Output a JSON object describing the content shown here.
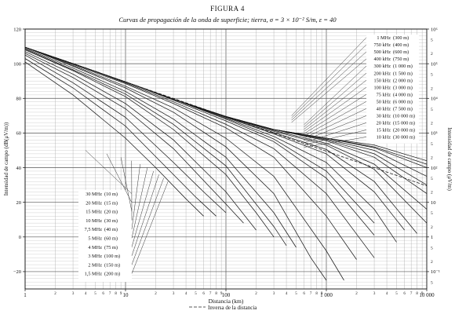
{
  "figure": {
    "number": "FIGURA 4",
    "title": "Curvas de propagación de la onda de superficie; tierra, σ = 3 × 10⁻² S/m, ε = 40",
    "legend_note": "Inversa de la distancia"
  },
  "chart_data": {
    "type": "line",
    "title": "Curvas de propagación de la onda de superficie; tierra, σ = 3 × 10⁻² S/m, ε = 40",
    "xlabel": "Distancia (km)",
    "ylabel": "Intensidad de campo (dB(μV/m))",
    "ylabel_right": "Intensidad de campo (μV/m)",
    "xscale": "log",
    "xlim": [
      1,
      10000
    ],
    "ylim": [
      -30,
      120
    ],
    "grid": true,
    "x_ticks": [
      1,
      10,
      100,
      1000,
      10000
    ],
    "x_tick_labels": [
      "1",
      "10",
      "100",
      "1 000",
      "10 000"
    ],
    "x_minor_labels": [
      "2",
      "3",
      "4",
      "5",
      "6",
      "7",
      "8",
      "9"
    ],
    "y_ticks": [
      -20,
      0,
      20,
      40,
      60,
      80,
      100,
      120
    ],
    "y_tick_labels": [
      "−20",
      "0",
      "20",
      "40",
      "60",
      "80",
      "100",
      "120"
    ],
    "right_axis_ticks": [
      {
        "db": 120,
        "label": "10⁶"
      },
      {
        "db": 100,
        "label": "10⁵"
      },
      {
        "db": 80,
        "label": "10⁴"
      },
      {
        "db": 60,
        "label": "10³"
      },
      {
        "db": 40,
        "label": "10²"
      },
      {
        "db": 20,
        "label": "10"
      },
      {
        "db": 0,
        "label": "1"
      },
      {
        "db": -20,
        "label": "10⁻¹"
      }
    ],
    "right_minor_labels": [
      "5",
      "2"
    ],
    "reference_line": {
      "name": "Inversa de la distancia",
      "x": [
        1,
        10000
      ],
      "y": [
        109.5,
        29.5
      ]
    },
    "series": [
      {
        "name": "1 MHz",
        "wavelength": "(300 m)",
        "x": [
          1,
          3,
          10,
          30,
          100,
          300,
          1000,
          2000
        ],
        "y": [
          109.5,
          99.5,
          88.5,
          77,
          63,
          46,
          12,
          -13
        ]
      },
      {
        "name": "750 kHz",
        "wavelength": "(400 m)",
        "x": [
          1,
          3,
          10,
          30,
          100,
          300,
          1000,
          3000
        ],
        "y": [
          109.5,
          100,
          89,
          78,
          65,
          51,
          25,
          -12
        ]
      },
      {
        "name": "500 kHz",
        "wavelength": "(600 m)",
        "x": [
          1,
          3,
          10,
          30,
          100,
          300,
          1000,
          3000
        ],
        "y": [
          109.5,
          100,
          89.5,
          79,
          67,
          55,
          34,
          1
        ]
      },
      {
        "name": "400 kHz",
        "wavelength": "(750 m)",
        "x": [
          1,
          3,
          10,
          30,
          100,
          300,
          1000,
          3000
        ],
        "y": [
          109.5,
          100,
          89.5,
          79.5,
          68,
          56.5,
          38,
          8
        ]
      },
      {
        "name": "300 kHz",
        "wavelength": "(1 000 m)",
        "x": [
          1,
          3,
          10,
          30,
          100,
          300,
          1000,
          3000,
          5000
        ],
        "y": [
          109.5,
          100,
          89.5,
          79.5,
          68.5,
          58,
          43,
          16,
          -3
        ]
      },
      {
        "name": "200 kHz",
        "wavelength": "(1 500 m)",
        "x": [
          1,
          3,
          10,
          30,
          100,
          300,
          1000,
          3000,
          6000
        ],
        "y": [
          109.5,
          100,
          89.5,
          79.5,
          69,
          59.5,
          48,
          26,
          4
        ]
      },
      {
        "name": "150 kHz",
        "wavelength": "(2 000 m)",
        "x": [
          1,
          3,
          10,
          30,
          100,
          300,
          1000,
          3000,
          8000
        ],
        "y": [
          109.5,
          100,
          89.5,
          79.5,
          69.3,
          60.3,
          50.5,
          32,
          2
        ]
      },
      {
        "name": "100 kHz",
        "wavelength": "(3 000 m)",
        "x": [
          1,
          3,
          10,
          30,
          100,
          300,
          1000,
          3000,
          10000
        ],
        "y": [
          109.5,
          100,
          89.5,
          79.5,
          69.5,
          61,
          53,
          39,
          8
        ]
      },
      {
        "name": "75 kHz",
        "wavelength": "(4 000 m)",
        "x": [
          1,
          3,
          10,
          30,
          100,
          300,
          1000,
          3000,
          10000
        ],
        "y": [
          109.5,
          100,
          89.5,
          79.5,
          69.5,
          61.5,
          54,
          42,
          16
        ]
      },
      {
        "name": "50 kHz",
        "wavelength": "(6 000 m)",
        "x": [
          1,
          3,
          10,
          30,
          100,
          300,
          1000,
          3000,
          10000
        ],
        "y": [
          109.5,
          100,
          89.5,
          79.5,
          69.5,
          62,
          55.5,
          46,
          25
        ]
      },
      {
        "name": "40 kHz",
        "wavelength": "(7 500 m)",
        "x": [
          1,
          3,
          10,
          30,
          100,
          300,
          1000,
          3000,
          10000
        ],
        "y": [
          109.5,
          100,
          89.5,
          79.5,
          69.5,
          62,
          56,
          48,
          30
        ]
      },
      {
        "name": "30 kHz",
        "wavelength": "(10 000 m)",
        "x": [
          1,
          3,
          10,
          30,
          100,
          300,
          1000,
          3000,
          10000
        ],
        "y": [
          109.5,
          100,
          89.5,
          79.5,
          69.5,
          62,
          56.5,
          50,
          35
        ]
      },
      {
        "name": "20 kHz",
        "wavelength": "(15 000 m)",
        "x": [
          1,
          3,
          10,
          30,
          100,
          300,
          1000,
          3000,
          10000
        ],
        "y": [
          109.5,
          100,
          89.5,
          79.5,
          69.5,
          62,
          57,
          51.5,
          40
        ]
      },
      {
        "name": "15 kHz",
        "wavelength": "(20 000 m)",
        "x": [
          1,
          3,
          10,
          30,
          100,
          300,
          1000,
          3000,
          10000
        ],
        "y": [
          109.5,
          100,
          89.5,
          79.5,
          69.5,
          62,
          57,
          52,
          42
        ]
      },
      {
        "name": "10 kHz",
        "wavelength": "(30 000 m)",
        "x": [
          1,
          3,
          10,
          30,
          100,
          300,
          1000,
          3000,
          10000
        ],
        "y": [
          109.5,
          100,
          89.5,
          79.5,
          69.5,
          62,
          57,
          53,
          44
        ]
      },
      {
        "name": "1,5 MHz",
        "wavelength": "(200 m)",
        "x": [
          1,
          3,
          10,
          30,
          100,
          300,
          1000,
          1500
        ],
        "y": [
          109.5,
          99,
          87,
          74.5,
          57,
          35,
          -8,
          -25
        ]
      },
      {
        "name": "2 MHz",
        "wavelength": "(150 m)",
        "x": [
          1,
          3,
          10,
          30,
          100,
          300,
          700,
          1000
        ],
        "y": [
          109.5,
          98.5,
          86,
          72,
          52,
          25,
          -12,
          -25
        ]
      },
      {
        "name": "3 MHz",
        "wavelength": "(100 m)",
        "x": [
          1,
          3,
          10,
          30,
          100,
          300,
          500
        ],
        "y": [
          109,
          97.5,
          84,
          68,
          46,
          14,
          -6
        ]
      },
      {
        "name": "4 MHz",
        "wavelength": "(75 m)",
        "x": [
          1,
          3,
          10,
          30,
          100,
          300,
          400
        ],
        "y": [
          108.5,
          96.5,
          82.5,
          65,
          41,
          6,
          -5
        ]
      },
      {
        "name": "5 MHz",
        "wavelength": "(60 m)",
        "x": [
          1,
          3,
          10,
          30,
          100,
          200,
          300
        ],
        "y": [
          108,
          96,
          81,
          62,
          36,
          14,
          0
        ]
      },
      {
        "name": "7,5 MHz",
        "wavelength": "(40 m)",
        "x": [
          1,
          3,
          10,
          30,
          100,
          200
        ],
        "y": [
          107,
          94,
          77,
          56,
          26,
          4
        ]
      },
      {
        "name": "10 MHz",
        "wavelength": "(30 m)",
        "x": [
          1,
          3,
          10,
          30,
          100,
          150
        ],
        "y": [
          106,
          92,
          74,
          51,
          19,
          8
        ]
      },
      {
        "name": "15 MHz",
        "wavelength": "(20 m)",
        "x": [
          1,
          3,
          10,
          30,
          60,
          100
        ],
        "y": [
          105,
          89,
          69,
          43,
          26,
          14
        ]
      },
      {
        "name": "20 MHz",
        "wavelength": "(15 m)",
        "x": [
          1,
          3,
          10,
          30,
          50,
          80
        ],
        "y": [
          103,
          86,
          64,
          36,
          23,
          12
        ]
      },
      {
        "name": "30 MHz",
        "wavelength": "(10 m)",
        "x": [
          1,
          3,
          10,
          20,
          40,
          60
        ],
        "y": [
          101,
          82,
          57,
          40,
          22,
          12
        ]
      }
    ]
  }
}
